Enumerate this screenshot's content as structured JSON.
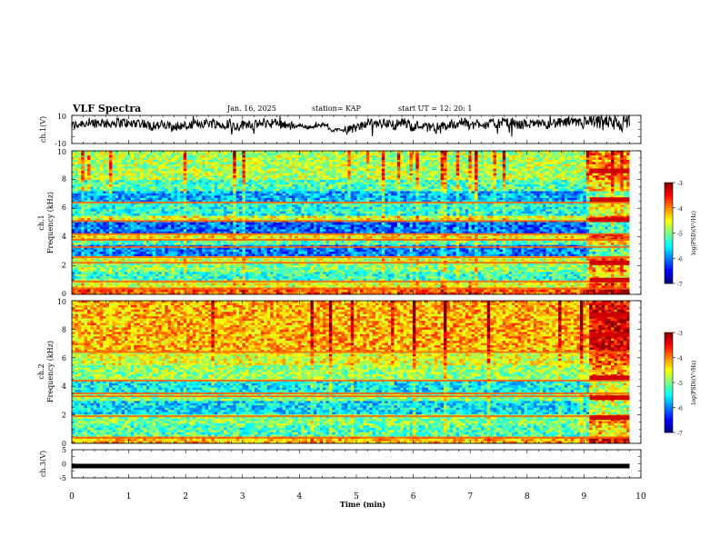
{
  "chart_data": {
    "type": "heatmap",
    "header": {
      "title": "VLF Spectra",
      "date": "Jan. 16, 2025",
      "station": "station= KAP",
      "start_time": "start  UT =   12: 20: 1"
    },
    "x_axis": {
      "label": "Time  (min)",
      "range": [
        0,
        10
      ],
      "ticks": [
        "0",
        "1",
        "2",
        "3",
        "4",
        "5",
        "6",
        "7",
        "8",
        "9",
        "10"
      ]
    },
    "panels": [
      {
        "id": "ch1-waveform",
        "kind": "waveform",
        "ylabel": "ch.1(V)",
        "yrange": [
          -10,
          10
        ],
        "yticks": [
          "10",
          "-10"
        ],
        "data_end_min": 9.8
      },
      {
        "id": "ch1-spectrogram",
        "kind": "spectrogram",
        "ylabel_line1": "ch.1",
        "ylabel_line2": "Frequency (kHz)",
        "yrange": [
          0,
          10
        ],
        "yticks": [
          "0",
          "2",
          "4",
          "6",
          "8",
          "10"
        ],
        "background_band_khz": [
          {
            "from": 0.0,
            "to": 0.4,
            "level": -3.9
          },
          {
            "from": 0.4,
            "to": 1.0,
            "level": -4.6
          },
          {
            "from": 1.0,
            "to": 1.6,
            "level": -5.3
          },
          {
            "from": 1.6,
            "to": 2.2,
            "level": -5.0
          },
          {
            "from": 2.2,
            "to": 2.6,
            "level": -4.7
          },
          {
            "from": 2.6,
            "to": 3.4,
            "level": -6.0
          },
          {
            "from": 3.4,
            "to": 3.8,
            "level": -5.2
          },
          {
            "from": 3.8,
            "to": 4.2,
            "level": -4.5
          },
          {
            "from": 4.2,
            "to": 5.1,
            "level": -6.1
          },
          {
            "from": 5.1,
            "to": 5.5,
            "level": -4.6
          },
          {
            "from": 5.5,
            "to": 6.4,
            "level": -5.4
          },
          {
            "from": 6.4,
            "to": 7.2,
            "level": -5.8
          },
          {
            "from": 7.2,
            "to": 8.0,
            "level": -5.2
          },
          {
            "from": 8.0,
            "to": 10.0,
            "level": -4.8
          }
        ],
        "tone_lines_khz": [
          0.4,
          0.9,
          2.2,
          2.6,
          3.3,
          3.8,
          4.2,
          5.1,
          6.4
        ],
        "burst_window_min": [
          9.1,
          9.8
        ]
      },
      {
        "id": "ch2-spectrogram",
        "kind": "spectrogram",
        "ylabel_line1": "ch.2",
        "ylabel_line2": "Frequency (kHz)",
        "yrange": [
          0,
          10
        ],
        "yticks": [
          "0",
          "2",
          "4",
          "6",
          "8",
          "10"
        ],
        "background_band_khz": [
          {
            "from": 0.0,
            "to": 0.4,
            "level": -4.2
          },
          {
            "from": 0.4,
            "to": 1.2,
            "level": -5.2
          },
          {
            "from": 1.2,
            "to": 2.0,
            "level": -5.0
          },
          {
            "from": 2.0,
            "to": 3.0,
            "level": -5.6
          },
          {
            "from": 3.0,
            "to": 3.5,
            "level": -5.0
          },
          {
            "from": 3.5,
            "to": 4.4,
            "level": -5.5
          },
          {
            "from": 4.4,
            "to": 5.4,
            "level": -4.9
          },
          {
            "from": 5.4,
            "to": 6.4,
            "level": -4.6
          },
          {
            "from": 6.4,
            "to": 10.0,
            "level": -4.2
          }
        ],
        "tone_lines_khz": [
          0.4,
          1.9,
          3.3,
          3.5,
          4.4,
          6.4
        ],
        "burst_window_min": [
          9.1,
          9.8
        ]
      },
      {
        "id": "ch3-waveform",
        "kind": "waveform",
        "ylabel": "ch.3(V)",
        "yrange": [
          -5,
          5
        ],
        "yticks": [
          "5",
          "0",
          "-5"
        ],
        "constant_value": -0.8,
        "data_end_min": 9.8
      }
    ],
    "colorbars": [
      {
        "label": "log(PSD)(V²/Hz)",
        "range": [
          -7,
          -3
        ],
        "ticks": [
          "-3",
          "-4",
          "-5",
          "-6",
          "-7"
        ]
      },
      {
        "label": "log(PSD)(V²/Hz)",
        "range": [
          -7,
          -3
        ],
        "ticks": [
          "-3",
          "-4",
          "-5",
          "-6",
          "-7"
        ]
      }
    ]
  }
}
